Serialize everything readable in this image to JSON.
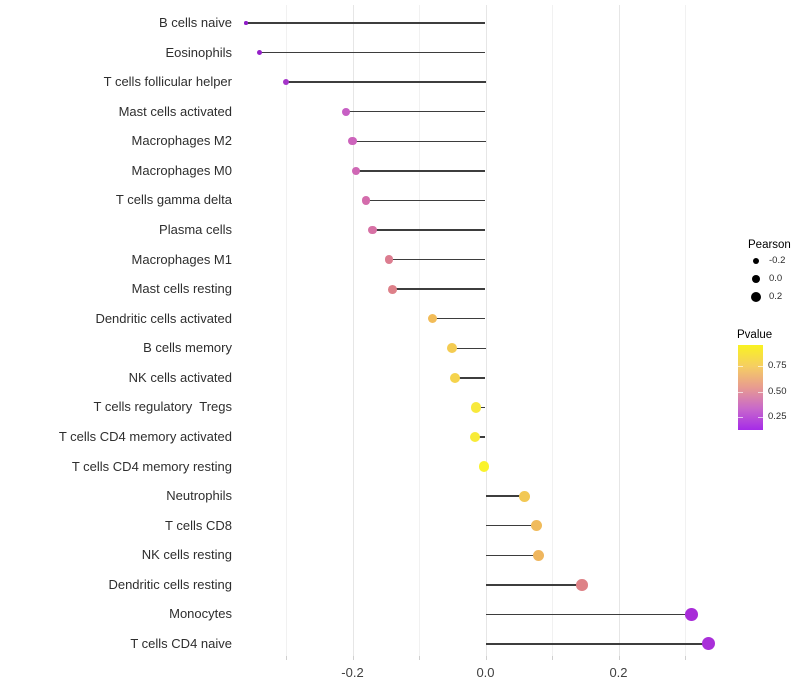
{
  "chart_data": {
    "type": "lollipop",
    "orientation": "horizontal",
    "title": "",
    "xlabel": "",
    "ylabel": "",
    "x_axis": {
      "major_ticks": [
        {
          "label": "-0.2",
          "value": -0.2
        },
        {
          "label": "0.0",
          "value": 0.0
        },
        {
          "label": "0.2",
          "value": 0.2
        }
      ],
      "minor_ticks": [
        -0.3,
        -0.1,
        0.1,
        0.3
      ],
      "range": [
        -0.4,
        0.37
      ]
    },
    "points": [
      {
        "label": "B cells naive",
        "pearson": -0.36,
        "pvalue_approx": 0.08,
        "color": "#8F1DC7"
      },
      {
        "label": "Eosinophils",
        "pearson": -0.34,
        "pvalue_approx": 0.1,
        "color": "#9520C8"
      },
      {
        "label": "T cells follicular helper",
        "pearson": -0.3,
        "pvalue_approx": 0.15,
        "color": "#A536C9"
      },
      {
        "label": "Mast cells activated",
        "pearson": -0.21,
        "pvalue_approx": 0.3,
        "color": "#C75FC4"
      },
      {
        "label": "Macrophages M2",
        "pearson": -0.2,
        "pvalue_approx": 0.35,
        "color": "#CD64BC"
      },
      {
        "label": "Macrophages M0",
        "pearson": -0.195,
        "pvalue_approx": 0.38,
        "color": "#CF67B5"
      },
      {
        "label": "T cells gamma delta",
        "pearson": -0.18,
        "pvalue_approx": 0.42,
        "color": "#D46CAC"
      },
      {
        "label": "Plasma cells",
        "pearson": -0.17,
        "pvalue_approx": 0.45,
        "color": "#D771A5"
      },
      {
        "label": "Macrophages M1",
        "pearson": -0.145,
        "pvalue_approx": 0.54,
        "color": "#DC7D90"
      },
      {
        "label": "Mast cells resting",
        "pearson": -0.14,
        "pvalue_approx": 0.56,
        "color": "#DD8089"
      },
      {
        "label": "Dendritic cells activated",
        "pearson": -0.08,
        "pvalue_approx": 0.72,
        "color": "#F2BC58"
      },
      {
        "label": "B cells memory",
        "pearson": -0.05,
        "pvalue_approx": 0.8,
        "color": "#F4CC52"
      },
      {
        "label": "NK cells activated",
        "pearson": -0.046,
        "pvalue_approx": 0.83,
        "color": "#F5D34C"
      },
      {
        "label": "T cells regulatory  Tregs",
        "pearson": -0.014,
        "pvalue_approx": 0.9,
        "color": "#F8E93C"
      },
      {
        "label": "T cells CD4 memory activated",
        "pearson": -0.016,
        "pvalue_approx": 0.91,
        "color": "#F8EB37"
      },
      {
        "label": "T cells CD4 memory resting",
        "pearson": -0.002,
        "pvalue_approx": 0.97,
        "color": "#FAF32B"
      },
      {
        "label": "Neutrophils",
        "pearson": 0.058,
        "pvalue_approx": 0.78,
        "color": "#F2C854"
      },
      {
        "label": "T cells CD8",
        "pearson": 0.077,
        "pvalue_approx": 0.72,
        "color": "#F0BB5B"
      },
      {
        "label": "NK cells resting",
        "pearson": 0.08,
        "pvalue_approx": 0.7,
        "color": "#EFB65E"
      },
      {
        "label": "Dendritic cells resting",
        "pearson": 0.145,
        "pvalue_approx": 0.56,
        "color": "#DE8287"
      },
      {
        "label": "Monocytes",
        "pearson": 0.31,
        "pvalue_approx": 0.12,
        "color": "#A82CD8"
      },
      {
        "label": "T cells CD4 naive",
        "pearson": 0.335,
        "pvalue_approx": 0.1,
        "color": "#A92FD9"
      }
    ],
    "legend": {
      "pearson": {
        "title": "Pearson",
        "items": [
          {
            "label": "-0.2",
            "value": -0.2
          },
          {
            "label": "0.0",
            "value": 0.0
          },
          {
            "label": "0.2",
            "value": 0.2
          }
        ]
      },
      "pvalue": {
        "title": "Pvalue",
        "tick_labels": [
          "0.75",
          "0.50",
          "0.25"
        ],
        "gradient_top_to_bottom": [
          "#F9F221",
          "#F5CE62",
          "#E89B90",
          "#C868CB",
          "#A52BE8"
        ]
      }
    },
    "colors": {
      "stem": "#3D3D3D",
      "grid_major": "#E6E6E6",
      "grid_minor": "#F1F1F1",
      "axis_tick": "#CFCFCF",
      "legend_dot": "#000000",
      "background": "#FFFFFF"
    }
  }
}
